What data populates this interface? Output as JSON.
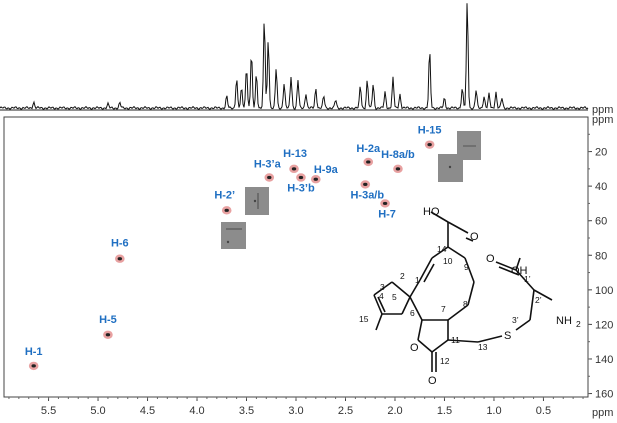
{
  "chart_data": {
    "type": "scatter",
    "title": "",
    "x_unit": "ppm",
    "y_unit": "ppm",
    "xlim": [
      5.95,
      0.05
    ],
    "ylim": [
      0,
      162
    ],
    "x_reversed": true,
    "y_reversed": true,
    "x_ticks": [
      5.5,
      5.0,
      4.5,
      4.0,
      3.5,
      3.0,
      2.5,
      2.0,
      1.5,
      1.0,
      0.5
    ],
    "x_tick_labels": [
      "5.5",
      "5.0",
      "4.5",
      "4.0",
      "3.5",
      "3.0",
      "2.5",
      "2.0",
      "1.5",
      "1.0",
      "0.5"
    ],
    "y_ticks": [
      20,
      40,
      60,
      80,
      100,
      120,
      140,
      160
    ],
    "y_tick_labels": [
      "20",
      "40",
      "60",
      "80",
      "100",
      "120",
      "140",
      "160"
    ],
    "grid": false,
    "peak_color": "#e8a1a1",
    "label_color": "#1f6fc2",
    "points": [
      {
        "label": "H-1",
        "x": 5.65,
        "y": 144
      },
      {
        "label": "H-5",
        "x": 4.9,
        "y": 126
      },
      {
        "label": "H-6",
        "x": 4.78,
        "y": 82
      },
      {
        "label": "H-2’",
        "x": 3.7,
        "y": 54
      },
      {
        "label": "H-3’a",
        "x": 3.27,
        "y": 35
      },
      {
        "label": "H-13",
        "x": 3.02,
        "y": 30
      },
      {
        "label": "H-3’b",
        "x": 2.95,
        "y": 35
      },
      {
        "label": "H-9a",
        "x": 2.8,
        "y": 36
      },
      {
        "label": "H-2a",
        "x": 2.27,
        "y": 26
      },
      {
        "label": "H-3a/b",
        "x": 2.3,
        "y": 39
      },
      {
        "label": "H-7",
        "x": 2.1,
        "y": 50
      },
      {
        "label": "H-8a/b",
        "x": 1.97,
        "y": 30
      },
      {
        "label": "H-15",
        "x": 1.65,
        "y": 16
      }
    ],
    "label_order": [
      "H-1",
      "H-5",
      "H-6",
      "H-2’",
      "H-3’a",
      "H-13",
      "H-3’b",
      "H-9a",
      "H-2a",
      "H-3a/b",
      "H-7",
      "H-8a/b",
      "H-15"
    ]
  },
  "molecule": {
    "acid_top": "HO",
    "acid_bottom": "O",
    "side_acid": "OH",
    "side_acid_o": "O",
    "amine": "NH",
    "amine_sub": "2",
    "ring_o": "O",
    "lactone_o": "O",
    "sulfur": "S",
    "numbers": [
      "14",
      "10",
      "9",
      "8",
      "7",
      "6",
      "5",
      "4",
      "3",
      "2",
      "1",
      "15",
      "11",
      "12",
      "13",
      "1’",
      "2’",
      "3’"
    ]
  }
}
